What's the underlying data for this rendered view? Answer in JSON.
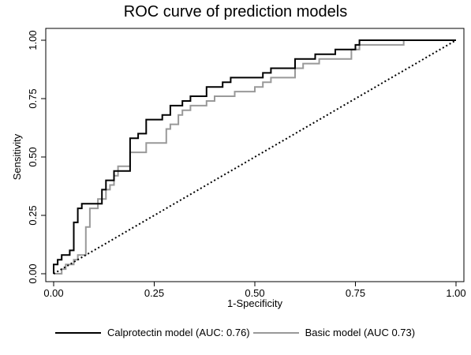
{
  "chart_data": {
    "type": "line",
    "title": "ROC curve of prediction models",
    "xlabel": "1-Specificity",
    "ylabel": "Sensitivity",
    "xlim": [
      0,
      1
    ],
    "ylim": [
      0,
      1
    ],
    "xticks": [
      "0.00",
      "0.25",
      "0.50",
      "0.75",
      "1.00"
    ],
    "yticks": [
      "0.00",
      "0.25",
      "0.50",
      "0.75",
      "1.00"
    ],
    "grid": false,
    "legend_position": "bottom",
    "series": [
      {
        "name": "Calprotectin model (AUC: 0.76)",
        "color": "#000000",
        "points": [
          [
            0,
            0
          ],
          [
            0,
            0.04
          ],
          [
            0.01,
            0.04
          ],
          [
            0.01,
            0.06
          ],
          [
            0.02,
            0.06
          ],
          [
            0.02,
            0.08
          ],
          [
            0.04,
            0.08
          ],
          [
            0.04,
            0.1
          ],
          [
            0.05,
            0.1
          ],
          [
            0.05,
            0.22
          ],
          [
            0.06,
            0.22
          ],
          [
            0.06,
            0.28
          ],
          [
            0.07,
            0.28
          ],
          [
            0.07,
            0.3
          ],
          [
            0.09,
            0.3
          ],
          [
            0.12,
            0.3
          ],
          [
            0.12,
            0.36
          ],
          [
            0.13,
            0.36
          ],
          [
            0.13,
            0.4
          ],
          [
            0.15,
            0.4
          ],
          [
            0.15,
            0.44
          ],
          [
            0.19,
            0.44
          ],
          [
            0.19,
            0.58
          ],
          [
            0.21,
            0.58
          ],
          [
            0.21,
            0.6
          ],
          [
            0.23,
            0.6
          ],
          [
            0.23,
            0.66
          ],
          [
            0.27,
            0.66
          ],
          [
            0.27,
            0.68
          ],
          [
            0.29,
            0.68
          ],
          [
            0.29,
            0.72
          ],
          [
            0.32,
            0.72
          ],
          [
            0.32,
            0.74
          ],
          [
            0.34,
            0.74
          ],
          [
            0.34,
            0.76
          ],
          [
            0.38,
            0.76
          ],
          [
            0.38,
            0.8
          ],
          [
            0.42,
            0.8
          ],
          [
            0.42,
            0.82
          ],
          [
            0.44,
            0.82
          ],
          [
            0.44,
            0.84
          ],
          [
            0.52,
            0.84
          ],
          [
            0.52,
            0.86
          ],
          [
            0.54,
            0.86
          ],
          [
            0.54,
            0.88
          ],
          [
            0.6,
            0.88
          ],
          [
            0.6,
            0.92
          ],
          [
            0.65,
            0.92
          ],
          [
            0.65,
            0.94
          ],
          [
            0.7,
            0.94
          ],
          [
            0.7,
            0.96
          ],
          [
            0.75,
            0.96
          ],
          [
            0.75,
            0.98
          ],
          [
            0.76,
            0.98
          ],
          [
            0.76,
            1.0
          ],
          [
            1.0,
            1.0
          ]
        ]
      },
      {
        "name": "Basic model (AUC 0.73)",
        "color": "#999999",
        "points": [
          [
            0,
            0
          ],
          [
            0.02,
            0
          ],
          [
            0.02,
            0.02
          ],
          [
            0.03,
            0.02
          ],
          [
            0.03,
            0.04
          ],
          [
            0.05,
            0.04
          ],
          [
            0.05,
            0.06
          ],
          [
            0.06,
            0.06
          ],
          [
            0.06,
            0.08
          ],
          [
            0.08,
            0.08
          ],
          [
            0.08,
            0.2
          ],
          [
            0.09,
            0.2
          ],
          [
            0.09,
            0.28
          ],
          [
            0.11,
            0.28
          ],
          [
            0.11,
            0.32
          ],
          [
            0.13,
            0.32
          ],
          [
            0.13,
            0.36
          ],
          [
            0.14,
            0.36
          ],
          [
            0.14,
            0.38
          ],
          [
            0.15,
            0.38
          ],
          [
            0.15,
            0.42
          ],
          [
            0.16,
            0.42
          ],
          [
            0.16,
            0.46
          ],
          [
            0.19,
            0.46
          ],
          [
            0.19,
            0.52
          ],
          [
            0.23,
            0.52
          ],
          [
            0.23,
            0.56
          ],
          [
            0.28,
            0.56
          ],
          [
            0.28,
            0.62
          ],
          [
            0.29,
            0.62
          ],
          [
            0.29,
            0.64
          ],
          [
            0.31,
            0.64
          ],
          [
            0.31,
            0.68
          ],
          [
            0.32,
            0.68
          ],
          [
            0.32,
            0.7
          ],
          [
            0.34,
            0.7
          ],
          [
            0.34,
            0.72
          ],
          [
            0.38,
            0.72
          ],
          [
            0.38,
            0.74
          ],
          [
            0.4,
            0.74
          ],
          [
            0.4,
            0.76
          ],
          [
            0.45,
            0.76
          ],
          [
            0.45,
            0.78
          ],
          [
            0.5,
            0.78
          ],
          [
            0.5,
            0.8
          ],
          [
            0.52,
            0.8
          ],
          [
            0.52,
            0.82
          ],
          [
            0.54,
            0.82
          ],
          [
            0.54,
            0.84
          ],
          [
            0.6,
            0.84
          ],
          [
            0.6,
            0.88
          ],
          [
            0.62,
            0.88
          ],
          [
            0.62,
            0.9
          ],
          [
            0.66,
            0.9
          ],
          [
            0.66,
            0.92
          ],
          [
            0.74,
            0.92
          ],
          [
            0.74,
            0.96
          ],
          [
            0.76,
            0.96
          ],
          [
            0.76,
            0.98
          ],
          [
            0.87,
            0.98
          ],
          [
            0.87,
            1.0
          ],
          [
            1.0,
            1.0
          ]
        ]
      },
      {
        "name": "",
        "style": "dotted",
        "color": "#000000",
        "points": [
          [
            0,
            0
          ],
          [
            1,
            1
          ]
        ]
      }
    ]
  }
}
